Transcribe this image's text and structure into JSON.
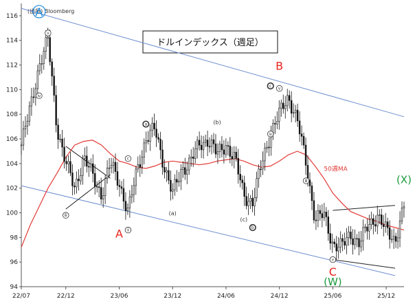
{
  "source": "(出所) Bloomberg",
  "chart_data": {
    "type": "line",
    "title": "ドルインデックス（週足）",
    "ylim": [
      94,
      117
    ],
    "y_ticks": [
      94,
      96,
      98,
      100,
      102,
      104,
      106,
      108,
      110,
      112,
      114,
      116
    ],
    "x_ticks": [
      "22/07",
      "22/12",
      "23/06",
      "23/12",
      "24/06",
      "24/12",
      "25/06",
      "25/12"
    ],
    "xlabel": "",
    "ylabel": "",
    "grid": false,
    "series": [
      {
        "name": "",
        "style": "weekly-candles",
        "color": "#111111",
        "x": [
          "2022-07",
          "2022-08",
          "2022-09",
          "2022-10",
          "2022-11",
          "2022-12",
          "2023-01",
          "2023-02",
          "2023-03",
          "2023-04",
          "2023-05",
          "2023-06",
          "2023-07",
          "2023-08",
          "2023-09",
          "2023-10",
          "2023-11",
          "2023-12",
          "2024-01",
          "2024-02",
          "2024-03",
          "2024-04",
          "2024-05",
          "2024-06",
          "2024-07",
          "2024-08",
          "2024-09",
          "2024-10",
          "2024-11",
          "2024-12",
          "2025-01",
          "2025-02",
          "2025-03",
          "2025-04",
          "2025-05",
          "2025-06",
          "2025-07",
          "2025-08",
          "2025-09",
          "2025-10",
          "2025-11",
          "2025-12",
          "2026-01",
          "2026-02"
        ],
        "values": [
          105.5,
          108.5,
          112,
          114,
          107,
          104,
          102,
          104.5,
          103,
          101.5,
          104,
          102.5,
          100,
          103.5,
          106,
          106.8,
          104,
          101.5,
          103.5,
          104.2,
          105.5,
          106,
          104.7,
          105.6,
          104.3,
          101.5,
          100.8,
          104,
          106.5,
          108,
          109.5,
          107.5,
          104,
          99.5,
          99.8,
          97.5,
          97.2,
          98.3,
          97.5,
          99,
          99.8,
          98.5,
          97.8,
          100.5
        ]
      },
      {
        "name": "50週MA",
        "color": "#e23a36",
        "x": [
          "2022-07",
          "2022-08",
          "2022-09",
          "2022-10",
          "2022-11",
          "2022-12",
          "2023-01",
          "2023-02",
          "2023-03",
          "2023-04",
          "2023-05",
          "2023-06",
          "2023-07",
          "2023-08",
          "2023-09",
          "2023-10",
          "2023-11",
          "2023-12",
          "2024-01",
          "2024-02",
          "2024-03",
          "2024-04",
          "2024-05",
          "2024-06",
          "2024-07",
          "2024-08",
          "2024-09",
          "2024-10",
          "2024-11",
          "2024-12",
          "2025-01",
          "2025-02",
          "2025-03",
          "2025-04",
          "2025-05",
          "2025-06",
          "2025-07",
          "2025-08",
          "2025-09",
          "2025-10",
          "2025-11",
          "2025-12",
          "2026-01",
          "2026-02"
        ],
        "values": [
          97.2,
          99,
          100.5,
          102,
          103.2,
          104.5,
          105.5,
          105.8,
          105.9,
          105.5,
          104.8,
          104.2,
          104,
          103.7,
          103.6,
          103.8,
          104.1,
          104.2,
          104.1,
          104,
          103.9,
          104,
          104.2,
          104.3,
          104.4,
          104.2,
          103.9,
          103.7,
          103.8,
          104.2,
          104.7,
          105,
          104.7,
          103.8,
          102.8,
          101.6,
          100.8,
          100.1,
          99.8,
          99.5,
          99.3,
          99,
          98.8,
          98.6
        ]
      }
    ],
    "trendlines": [
      {
        "name": "upper-channel",
        "color": "#6c8ecf",
        "points": [
          [
            "2022-07",
            116.6
          ],
          [
            "2026-02",
            107.8
          ]
        ]
      },
      {
        "name": "lower-channel",
        "color": "#6c8ecf",
        "points": [
          [
            "2022-07",
            102.2
          ],
          [
            "2026-01",
            94.9
          ]
        ]
      },
      {
        "name": "triangle-upper",
        "color": "#222222",
        "points": [
          [
            "2022-12",
            105.4
          ],
          [
            "2023-05",
            102.8
          ]
        ]
      },
      {
        "name": "triangle-lower",
        "color": "#222222",
        "points": [
          [
            "2022-12",
            100.3
          ],
          [
            "2023-05",
            103.1
          ]
        ]
      },
      {
        "name": "recent-range-top",
        "color": "#222222",
        "points": [
          [
            "2025-06",
            100.2
          ],
          [
            "2026-01",
            100.6
          ]
        ]
      },
      {
        "name": "recent-range-bottom",
        "color": "#222222",
        "points": [
          [
            "2025-06",
            96.2
          ],
          [
            "2026-01",
            95.5
          ]
        ]
      }
    ],
    "annotations": [
      {
        "text": "A",
        "style": "circled-blue",
        "x": "2022-09",
        "y": 116
      },
      {
        "text": "A",
        "style": "red",
        "x": "2023-06",
        "y": 98
      },
      {
        "text": "B",
        "style": "red",
        "x": "2024-12",
        "y": 111.6
      },
      {
        "text": "C",
        "style": "red",
        "x": "2025-06",
        "y": 94.9
      },
      {
        "text": "(W)",
        "style": "green",
        "x": "2025-06",
        "y": 94.1
      },
      {
        "text": "(X)",
        "style": "green",
        "x": "2026-02",
        "y": 102.4
      },
      {
        "text": "(a)",
        "style": "small",
        "x": "2023-12",
        "y": 99.8
      },
      {
        "text": "(b)",
        "style": "small",
        "x": "2024-05",
        "y": 107.2
      },
      {
        "text": "(c)",
        "style": "small",
        "x": "2024-08",
        "y": 99.3
      },
      {
        "text": "50週MA",
        "style": "ma-label",
        "x": "2025-05",
        "y": 103.4
      },
      {
        "text": "ⅴ",
        "style": "circled",
        "x": "2022-10",
        "y": 114.6
      },
      {
        "text": "ⅳ",
        "style": "circled",
        "x": "2022-09",
        "y": 109.5
      },
      {
        "text": "ⅲ",
        "style": "circled",
        "x": "2022-12",
        "y": 99.8
      },
      {
        "text": "c",
        "style": "circled",
        "x": "2023-07",
        "y": 104.4
      },
      {
        "text": "ⅱ",
        "style": "circled",
        "x": "2023-07",
        "y": 98.6
      },
      {
        "text": "a",
        "style": "circled-bold",
        "x": "2023-09",
        "y": 107.2
      },
      {
        "text": "b",
        "style": "circled-bold",
        "x": "2024-09",
        "y": 98.8
      },
      {
        "text": "c",
        "style": "circled-bold",
        "x": "2024-11",
        "y": 110.3
      },
      {
        "text": "ⅴ",
        "style": "circled",
        "x": "2024-12",
        "y": 110.1
      },
      {
        "text": "ⅳ",
        "style": "circled",
        "x": "2024-11",
        "y": 106.4
      },
      {
        "text": "ⅲ",
        "style": "circled",
        "x": "2025-03",
        "y": 102.6
      },
      {
        "text": "ⅴ",
        "style": "circled",
        "x": "2025-06",
        "y": 96.2
      }
    ]
  }
}
